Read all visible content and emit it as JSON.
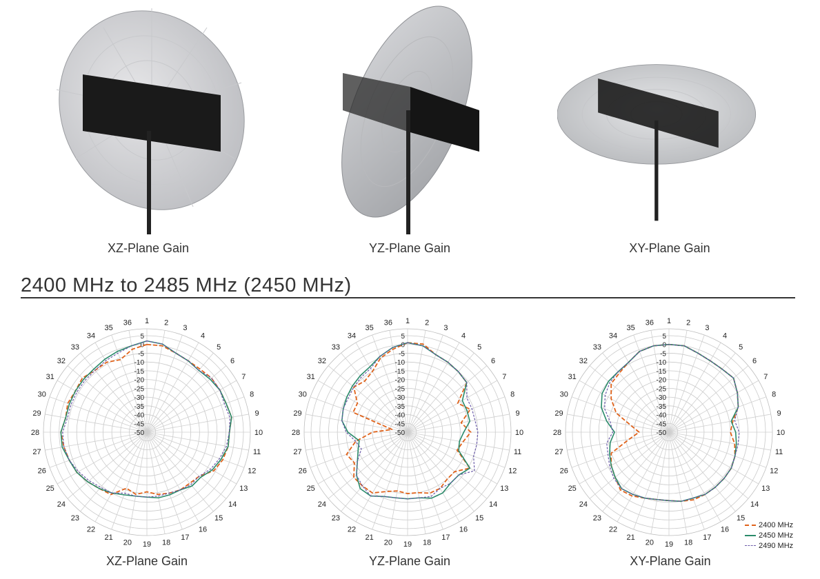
{
  "renders": [
    {
      "caption": "XZ-Plane Gain"
    },
    {
      "caption": "YZ-Plane Gain"
    },
    {
      "caption": "XY-Plane Gain"
    }
  ],
  "section": {
    "title": "2400 MHz to 2485 MHz (2450 MHz)"
  },
  "legend": [
    {
      "label": "2400 MHz",
      "color": "#e0621a"
    },
    {
      "label": "2450 MHz",
      "color": "#2a8a6a"
    },
    {
      "label": "2490 MHz",
      "color": "#6a5aa8"
    }
  ],
  "chart_data": [
    {
      "type": "polar-line",
      "caption": "XZ-Plane Gain",
      "angle_labels": [
        "1",
        "2",
        "3",
        "4",
        "5",
        "6",
        "7",
        "8",
        "9",
        "10",
        "11",
        "12",
        "13",
        "14",
        "15",
        "16",
        "17",
        "18",
        "19",
        "20",
        "21",
        "22",
        "23",
        "24",
        "25",
        "26",
        "27",
        "28",
        "29",
        "30",
        "31",
        "32",
        "33",
        "34",
        "35",
        "36"
      ],
      "radial_labels": [
        "5",
        "0",
        "-5",
        "-10",
        "-15",
        "-20",
        "-25",
        "-30",
        "-35",
        "-40",
        "-45",
        "-50"
      ],
      "rlim": [
        -50,
        5
      ],
      "series": [
        {
          "name": "2400 MHz",
          "values": [
            0,
            0,
            -2,
            -3,
            -3,
            -2,
            -2,
            -2,
            -1,
            -3,
            -3,
            -4,
            -6,
            -11,
            -12,
            -12,
            -13,
            -14,
            -16,
            -14,
            -16,
            -9,
            -8,
            -6,
            -4,
            -3,
            -2,
            -1,
            -3,
            -2,
            -3,
            -2,
            -4,
            -4,
            -6,
            -2
          ]
        },
        {
          "name": "2450 MHz",
          "values": [
            2,
            1,
            -2,
            -3,
            -4,
            -3,
            -2,
            -2,
            -1,
            -3,
            -3,
            -5,
            -7,
            -10,
            -10,
            -12,
            -12,
            -12,
            -13,
            -13,
            -12,
            -10,
            -8,
            -6,
            -4,
            -3,
            -1,
            -1,
            -3,
            -3,
            -3,
            -3,
            -3,
            -2,
            -1,
            0
          ]
        },
        {
          "name": "2490 MHz",
          "values": [
            2,
            1,
            -2,
            -3,
            -4,
            -2,
            -2,
            -3,
            -2,
            -3,
            -4,
            -6,
            -8,
            -11,
            -11,
            -12,
            -13,
            -13,
            -13,
            -13,
            -13,
            -10,
            -9,
            -7,
            -5,
            -3,
            -2,
            -2,
            -4,
            -4,
            -4,
            -4,
            -4,
            -3,
            -2,
            0
          ]
        }
      ]
    },
    {
      "type": "polar-line",
      "caption": "YZ-Plane Gain",
      "angle_labels": [
        "1",
        "2",
        "3",
        "4",
        "5",
        "6",
        "7",
        "8",
        "9",
        "10",
        "11",
        "12",
        "13",
        "14",
        "15",
        "16",
        "17",
        "18",
        "19",
        "20",
        "21",
        "22",
        "23",
        "24",
        "25",
        "26",
        "27",
        "28",
        "29",
        "30",
        "31",
        "32",
        "33",
        "34",
        "35",
        "36"
      ],
      "radial_labels": [
        "5",
        "0",
        "-5",
        "-10",
        "-15",
        "-20",
        "-25",
        "-30",
        "-35",
        "-40",
        "-45",
        "-50"
      ],
      "rlim": [
        -50,
        5
      ],
      "series": [
        {
          "name": "2400 MHz",
          "values": [
            1,
            1,
            -3,
            -4,
            -5,
            -6,
            -17,
            -12,
            -19,
            -14,
            -18,
            -20,
            -9,
            -15,
            -15,
            -13,
            -13,
            -15,
            -15,
            -16,
            -14,
            -10,
            -10,
            -10,
            -15,
            -13,
            -20,
            -30,
            -41,
            -17,
            -17,
            -10,
            -12,
            -10,
            -5,
            -2
          ]
        },
        {
          "name": "2450 MHz",
          "values": [
            1,
            0,
            -3,
            -4,
            -5,
            -6,
            -14,
            -14,
            -14,
            -18,
            -20,
            -19,
            -9,
            -12,
            -12,
            -10,
            -10,
            -12,
            -12,
            -12,
            -11,
            -8,
            -8,
            -12,
            -17,
            -20,
            -22,
            -16,
            -12,
            -11,
            -10,
            -9,
            -8,
            -7,
            -4,
            -1
          ]
        },
        {
          "name": "2490 MHz",
          "values": [
            1,
            0,
            -3,
            -4,
            -5,
            -6,
            -11,
            -11,
            -11,
            -10,
            -10,
            -10,
            -6,
            -12,
            -12,
            -13,
            -11,
            -12,
            -12,
            -12,
            -11,
            -8,
            -10,
            -12,
            -17,
            -22,
            -20,
            -15,
            -12,
            -11,
            -11,
            -10,
            -9,
            -8,
            -4,
            -1
          ]
        }
      ]
    },
    {
      "type": "polar-line",
      "caption": "XY-Plane Gain",
      "angle_labels": [
        "1",
        "2",
        "3",
        "4",
        "5",
        "6",
        "7",
        "8",
        "9",
        "10",
        "11",
        "12",
        "13",
        "14",
        "15",
        "16",
        "17",
        "18",
        "19",
        "20",
        "21",
        "22",
        "23",
        "24",
        "25",
        "26",
        "27",
        "28",
        "29",
        "30",
        "31",
        "32",
        "33",
        "34",
        "35",
        "36"
      ],
      "radial_labels": [
        "5",
        "0",
        "-5",
        "-10",
        "-15",
        "-20",
        "-25",
        "-30",
        "-35",
        "-40",
        "-45",
        "-50"
      ],
      "rlim": [
        -50,
        5
      ],
      "series": [
        {
          "name": "2400 MHz",
          "values": [
            0,
            0,
            -2,
            -3,
            -3,
            -2,
            -5,
            -8,
            -13,
            -15,
            -12,
            -10,
            -9,
            -9,
            -9,
            -9,
            -9,
            -10,
            -11,
            -11,
            -10,
            -8,
            -7,
            -10,
            -12,
            -15,
            -27,
            -33,
            -28,
            -18,
            -12,
            -7,
            -6,
            -4,
            -1,
            0
          ]
        },
        {
          "name": "2450 MHz",
          "values": [
            0,
            0,
            -2,
            -3,
            -3,
            -2,
            -5,
            -8,
            -14,
            -12,
            -11,
            -10,
            -9,
            -9,
            -9,
            -9,
            -10,
            -10,
            -11,
            -11,
            -10,
            -9,
            -8,
            -10,
            -12,
            -14,
            -16,
            -19,
            -14,
            -9,
            -6,
            -5,
            -5,
            -4,
            -1,
            0
          ]
        },
        {
          "name": "2490 MHz",
          "values": [
            0,
            0,
            -2,
            -3,
            -3,
            -2,
            -5,
            -8,
            -12,
            -10,
            -10,
            -10,
            -9,
            -9,
            -9,
            -9,
            -10,
            -10,
            -11,
            -11,
            -10,
            -9,
            -8,
            -9,
            -11,
            -13,
            -14,
            -18,
            -16,
            -11,
            -8,
            -6,
            -5,
            -4,
            -1,
            0
          ]
        }
      ]
    }
  ]
}
